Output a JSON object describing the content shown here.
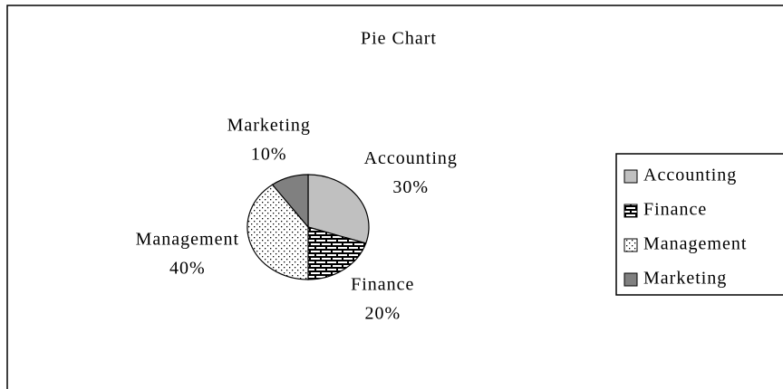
{
  "chart_data": {
    "type": "pie",
    "title": "Pie Chart",
    "categories": [
      "Accounting",
      "Finance",
      "Management",
      "Marketing"
    ],
    "values": [
      30,
      20,
      40,
      10
    ],
    "value_labels": [
      "30%",
      "20%",
      "40%",
      "10%"
    ],
    "legend": "right"
  }
}
